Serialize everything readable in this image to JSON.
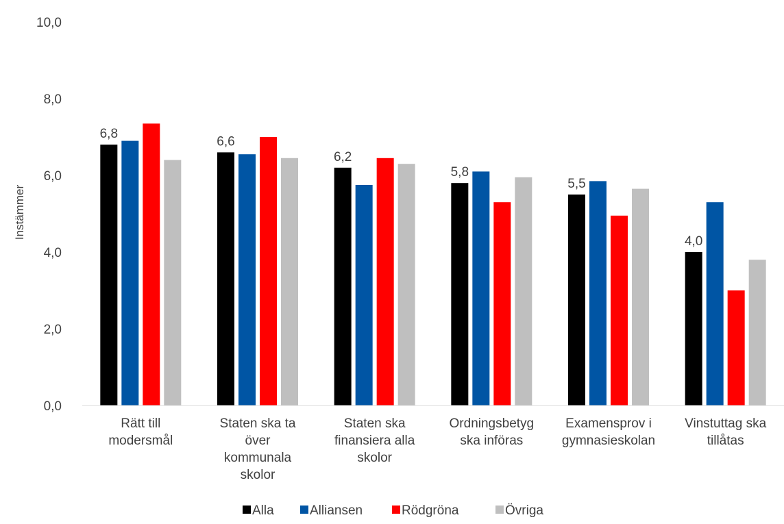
{
  "chart_data": {
    "type": "bar",
    "ylabel": "Instämmer",
    "ylim": [
      0,
      10
    ],
    "yticks": [
      "0,0",
      "2,0",
      "4,0",
      "6,0",
      "8,0",
      "10,0"
    ],
    "grid": false,
    "legend_position": "bottom",
    "categories": [
      [
        "Rätt till",
        "modersmål"
      ],
      [
        "Staten ska ta",
        "över",
        "kommunala",
        "skolor"
      ],
      [
        "Staten ska",
        "finansiera alla",
        "skolor"
      ],
      [
        "Ordningsbetyg",
        "ska införas"
      ],
      [
        "Examensprov i",
        "gymnasieskolan"
      ],
      [
        "Vinstuttag ska",
        "tillåtas"
      ]
    ],
    "series": [
      {
        "name": "Alla",
        "color": "#000000",
        "values": [
          6.8,
          6.6,
          6.2,
          5.8,
          5.5,
          4.0
        ],
        "data_labels": [
          "6,8",
          "6,6",
          "6,2",
          "5,8",
          "5,5",
          "4,0"
        ]
      },
      {
        "name": "Alliansen",
        "color": "#0055A4",
        "values": [
          6.9,
          6.55,
          5.75,
          6.1,
          5.85,
          5.3
        ]
      },
      {
        "name": "Rödgröna",
        "color": "#FF0000",
        "values": [
          7.35,
          7.0,
          6.45,
          5.3,
          4.95,
          3.0
        ]
      },
      {
        "name": "Övriga",
        "color": "#BFBFBF",
        "values": [
          6.4,
          6.45,
          6.3,
          5.95,
          5.65,
          3.8
        ]
      }
    ]
  }
}
